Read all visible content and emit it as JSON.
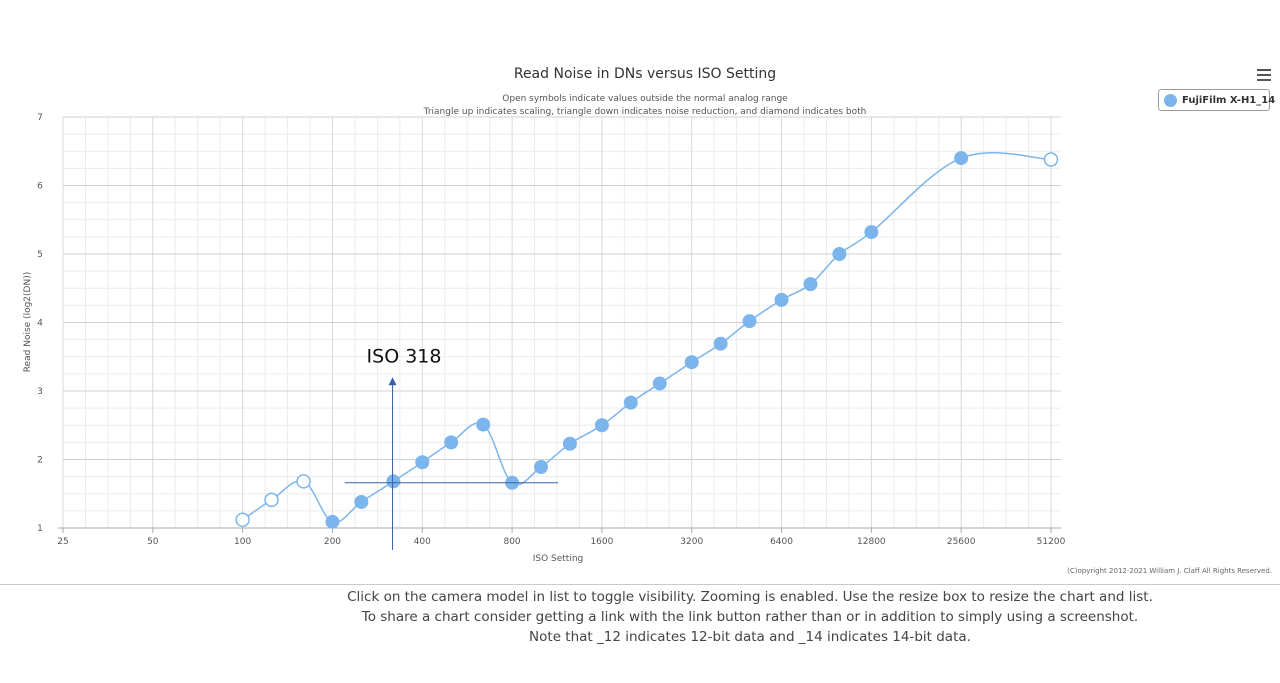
{
  "chart_data": {
    "type": "line",
    "title": "Read Noise in DNs versus ISO Setting",
    "subtitle": [
      "Open symbols indicate values outside the normal analog range",
      "Triangle up indicates scaling, triangle down indicates noise reduction, and diamond indicates both"
    ],
    "xlabel": "ISO Setting",
    "ylabel": "Read Noise (log2(DN))",
    "x_scale": "log2",
    "xlim": [
      25,
      51200
    ],
    "ylim": [
      1,
      7
    ],
    "x_ticks": [
      "25",
      "50",
      "100",
      "200",
      "400",
      "800",
      "1600",
      "3200",
      "6400",
      "12800",
      "25600",
      "51200"
    ],
    "y_ticks": [
      "1",
      "2",
      "3",
      "4",
      "5",
      "6",
      "7"
    ],
    "grid": true,
    "legend_position": "top-right",
    "series": [
      {
        "name": "FujiFilm X-H1_14",
        "color": "#7cb5ec",
        "points": [
          {
            "x": 100,
            "y": 1.12,
            "open": true
          },
          {
            "x": 125,
            "y": 1.41,
            "open": true
          },
          {
            "x": 160,
            "y": 1.68,
            "open": true
          },
          {
            "x": 200,
            "y": 1.09,
            "open": false
          },
          {
            "x": 250,
            "y": 1.38,
            "open": false
          },
          {
            "x": 320,
            "y": 1.68,
            "open": false
          },
          {
            "x": 400,
            "y": 1.96,
            "open": false
          },
          {
            "x": 500,
            "y": 2.25,
            "open": false
          },
          {
            "x": 640,
            "y": 2.51,
            "open": false
          },
          {
            "x": 800,
            "y": 1.66,
            "open": false
          },
          {
            "x": 1000,
            "y": 1.89,
            "open": false
          },
          {
            "x": 1250,
            "y": 2.23,
            "open": false
          },
          {
            "x": 1600,
            "y": 2.5,
            "open": false
          },
          {
            "x": 2000,
            "y": 2.83,
            "open": false
          },
          {
            "x": 2500,
            "y": 3.11,
            "open": false
          },
          {
            "x": 3200,
            "y": 3.42,
            "open": false
          },
          {
            "x": 4000,
            "y": 3.69,
            "open": false
          },
          {
            "x": 5000,
            "y": 4.02,
            "open": false
          },
          {
            "x": 6400,
            "y": 4.33,
            "open": false
          },
          {
            "x": 8000,
            "y": 4.56,
            "open": false
          },
          {
            "x": 10000,
            "y": 5.0,
            "open": false
          },
          {
            "x": 12800,
            "y": 5.32,
            "open": false
          },
          {
            "x": 25600,
            "y": 6.4,
            "open": false
          },
          {
            "x": 51200,
            "y": 6.38,
            "open": true
          }
        ]
      }
    ],
    "annotation": {
      "text": "ISO 318",
      "x": 318,
      "y": 1.66,
      "h_from_x": 220,
      "h_to_x": 1140,
      "v_to_y": 3.2
    }
  },
  "page": {
    "copyright": "(C)opyright 2012-2021 William J. Claff All Rights Reserved.",
    "notes": [
      "Click on the camera model in list to toggle visibility. Zooming is enabled. Use the resize box to resize the chart and list.",
      "To share a chart consider getting a link with the link button rather than or in addition to simply using a screenshot.",
      "Note that _12 indicates 12-bit data and _14 indicates 14-bit data."
    ],
    "menu_icon": "hamburger-menu-icon"
  }
}
